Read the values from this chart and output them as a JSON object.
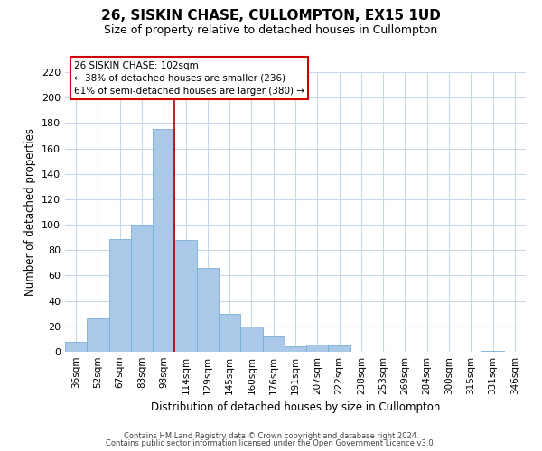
{
  "title": "26, SISKIN CHASE, CULLOMPTON, EX15 1UD",
  "subtitle": "Size of property relative to detached houses in Cullompton",
  "xlabel": "Distribution of detached houses by size in Cullompton",
  "ylabel": "Number of detached properties",
  "bar_labels": [
    "36sqm",
    "52sqm",
    "67sqm",
    "83sqm",
    "98sqm",
    "114sqm",
    "129sqm",
    "145sqm",
    "160sqm",
    "176sqm",
    "191sqm",
    "207sqm",
    "222sqm",
    "238sqm",
    "253sqm",
    "269sqm",
    "284sqm",
    "300sqm",
    "315sqm",
    "331sqm",
    "346sqm"
  ],
  "bar_values": [
    8,
    26,
    89,
    100,
    175,
    88,
    66,
    30,
    20,
    12,
    4,
    6,
    5,
    0,
    0,
    0,
    0,
    0,
    0,
    1,
    0
  ],
  "bar_color": "#aac8e8",
  "bar_edge_color": "#7aafd4",
  "ylim": [
    0,
    220
  ],
  "yticks": [
    0,
    20,
    40,
    60,
    80,
    100,
    120,
    140,
    160,
    180,
    200,
    220
  ],
  "vline_color": "#aa0000",
  "annotation_box_text": "26 SISKIN CHASE: 102sqm\n← 38% of detached houses are smaller (236)\n61% of semi-detached houses are larger (380) →",
  "footer_line1": "Contains HM Land Registry data © Crown copyright and database right 2024.",
  "footer_line2": "Contains public sector information licensed under the Open Government Licence v3.0.",
  "background_color": "#ffffff",
  "grid_color": "#c8d8e8"
}
